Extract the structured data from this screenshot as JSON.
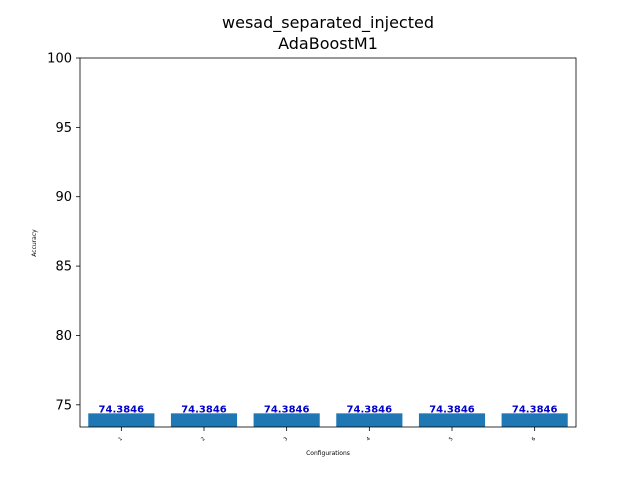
{
  "chart_data": {
    "type": "bar",
    "title": "wesad_separated_injected",
    "subtitle": "AdaBoostM1",
    "xlabel": "Configurations",
    "ylabel": "Accuracy",
    "categories": [
      "1",
      "2",
      "3",
      "4",
      "5",
      "6"
    ],
    "values": [
      74.3846,
      74.3846,
      74.3846,
      74.3846,
      74.3846,
      74.3846
    ],
    "data_labels": [
      "74.3846",
      "74.3846",
      "74.3846",
      "74.3846",
      "74.3846",
      "74.3846"
    ],
    "ylim": [
      73.4,
      100
    ],
    "yticks": [
      75,
      80,
      85,
      90,
      95,
      100
    ],
    "ytick_labels": [
      "75",
      "80",
      "85",
      "90",
      "95",
      "100"
    ],
    "grid": false,
    "colors": {
      "bar": "#1f77b4",
      "data_label": "#0000cc",
      "axis": "#000000"
    }
  }
}
